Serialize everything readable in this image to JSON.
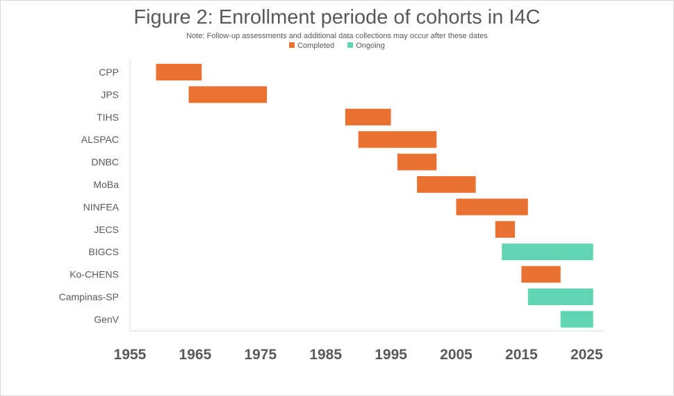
{
  "chart_data": {
    "type": "bar",
    "orientation": "horizontal-range",
    "title": "Figure 2: Enrollment periode of cohorts in I4C",
    "subtitle": "Note: Follow-up assessments and additional data collections may occur after these dates",
    "legend": [
      {
        "name": "Completed",
        "color": "#E97132"
      },
      {
        "name": "Ongoing",
        "color": "#61D4B3"
      }
    ],
    "legend_position": "top",
    "categories": [
      "CPP",
      "JPS",
      "TIHS",
      "ALSPAC",
      "DNBC",
      "MoBa",
      "NINFEA",
      "JECS",
      "BIGCS",
      "Ko-CHENS",
      "Campinas-SP",
      "GenV"
    ],
    "series": [
      {
        "category": "CPP",
        "start": 1959,
        "end": 1966,
        "status": "Completed"
      },
      {
        "category": "JPS",
        "start": 1964,
        "end": 1976,
        "status": "Completed"
      },
      {
        "category": "TIHS",
        "start": 1988,
        "end": 1995,
        "status": "Completed"
      },
      {
        "category": "ALSPAC",
        "start": 1990,
        "end": 2002,
        "status": "Completed"
      },
      {
        "category": "DNBC",
        "start": 1996,
        "end": 2002,
        "status": "Completed"
      },
      {
        "category": "MoBa",
        "start": 1999,
        "end": 2008,
        "status": "Completed"
      },
      {
        "category": "NINFEA",
        "start": 2005,
        "end": 2016,
        "status": "Completed"
      },
      {
        "category": "JECS",
        "start": 2011,
        "end": 2014,
        "status": "Completed"
      },
      {
        "category": "BIGCS",
        "start": 2012,
        "end": 2026,
        "status": "Ongoing"
      },
      {
        "category": "Ko-CHENS",
        "start": 2015,
        "end": 2021,
        "status": "Completed"
      },
      {
        "category": "Campinas-SP",
        "start": 2016,
        "end": 2026,
        "status": "Ongoing"
      },
      {
        "category": "GenV",
        "start": 2021,
        "end": 2026,
        "status": "Ongoing"
      }
    ],
    "xticks": [
      "1955",
      "1965",
      "1975",
      "1985",
      "1995",
      "2005",
      "2015",
      "2025"
    ],
    "xlim": [
      1955,
      2027
    ],
    "grid": false
  }
}
